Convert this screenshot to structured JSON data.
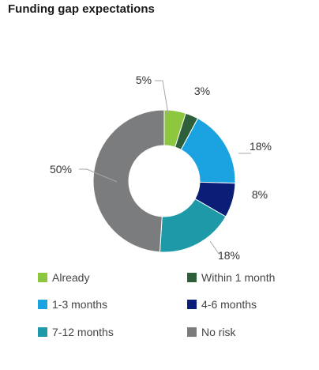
{
  "title": "Funding gap expectations",
  "chart_data": {
    "type": "pie",
    "donut": true,
    "title": "Funding gap expectations",
    "categories": [
      "Already",
      "Within 1 month",
      "1-3 months",
      "4-6 months",
      "7-12 months",
      "No risk"
    ],
    "values": [
      5,
      3,
      18,
      8,
      18,
      50
    ],
    "data_labels": [
      "5%",
      "3%",
      "18%",
      "8%",
      "18%",
      "50%"
    ],
    "colors": [
      "#8dc63f",
      "#2d5f3a",
      "#1aa3e0",
      "#0a1e78",
      "#1e99a8",
      "#7b7c7e"
    ],
    "legend_position": "bottom"
  }
}
